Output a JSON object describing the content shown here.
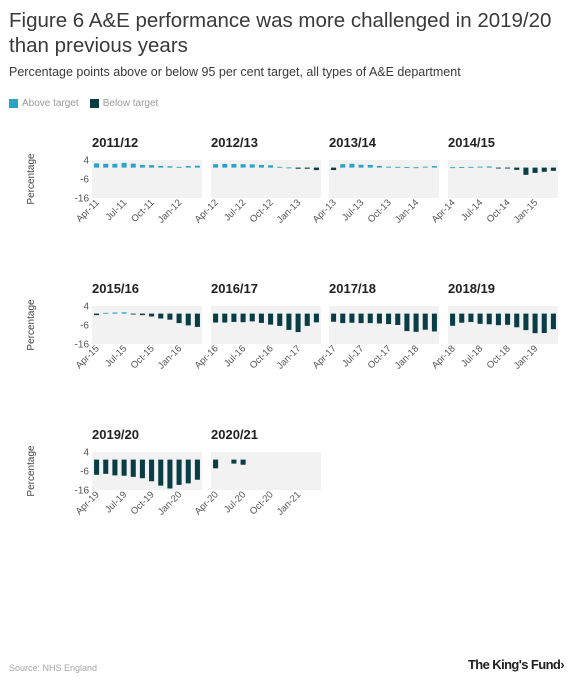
{
  "title": "Figure 6 A&E performance was more challenged in 2019/20 than previous years",
  "subtitle": "Percentage points above or below 95 per cent target, all types of A&E department",
  "legend": [
    {
      "label": "Above target",
      "color": "#2aa3c9"
    },
    {
      "label": "Below target",
      "color": "#083d45"
    }
  ],
  "source": "Source: NHS England",
  "logo": "The King's Fund",
  "logo_icon": "chevron-right-icon",
  "colors": {
    "above": "#2aa3c9",
    "below": "#083d45",
    "panel_bg": "#f2f2f2",
    "tick": "#555555"
  },
  "chart_data": [
    {
      "type": "bar",
      "title": "2011/12",
      "ylabel": "Percentage",
      "ylim": [
        -16,
        4
      ],
      "yticks": [
        4,
        -6,
        -16
      ],
      "categories": [
        "Apr-11",
        "May-11",
        "Jun-11",
        "Jul-11",
        "Aug-11",
        "Sep-11",
        "Oct-11",
        "Nov-11",
        "Dec-11",
        "Jan-12",
        "Feb-12",
        "Mar-12"
      ],
      "xticks": [
        "Apr-11",
        "Jul-11",
        "Oct-11",
        "Jan-12"
      ],
      "values": [
        2.2,
        2.0,
        2.0,
        2.5,
        2.1,
        1.4,
        1.3,
        0.9,
        0.7,
        0.4,
        0.8,
        1.0
      ]
    },
    {
      "type": "bar",
      "title": "2012/13",
      "ylabel": "",
      "ylim": [
        -16,
        4
      ],
      "yticks": [],
      "categories": [
        "Apr-12",
        "May-12",
        "Jun-12",
        "Jul-12",
        "Aug-12",
        "Sep-12",
        "Oct-12",
        "Nov-12",
        "Dec-12",
        "Jan-13",
        "Feb-13",
        "Mar-13"
      ],
      "xticks": [
        "Apr-12",
        "Jul-12",
        "Oct-12",
        "Jan-13"
      ],
      "values": [
        1.8,
        1.9,
        1.9,
        1.8,
        1.7,
        1.4,
        1.2,
        0.4,
        0.1,
        -0.6,
        -0.6,
        -1.3
      ]
    },
    {
      "type": "bar",
      "title": "2013/14",
      "ylabel": "",
      "ylim": [
        -16,
        4
      ],
      "yticks": [],
      "categories": [
        "Apr-13",
        "May-13",
        "Jun-13",
        "Jul-13",
        "Aug-13",
        "Sep-13",
        "Oct-13",
        "Nov-13",
        "Dec-13",
        "Jan-14",
        "Feb-14",
        "Mar-14"
      ],
      "xticks": [
        "Apr-13",
        "Jul-13",
        "Oct-13",
        "Jan-14"
      ],
      "values": [
        -1.3,
        1.8,
        2.0,
        1.5,
        1.4,
        0.9,
        0.5,
        0.4,
        0.3,
        0.2,
        0.5,
        0.8
      ]
    },
    {
      "type": "bar",
      "title": "2014/15",
      "ylabel": "",
      "ylim": [
        -16,
        4
      ],
      "yticks": [],
      "categories": [
        "Apr-14",
        "May-14",
        "Jun-14",
        "Jul-14",
        "Aug-14",
        "Sep-14",
        "Oct-14",
        "Nov-14",
        "Dec-14",
        "Jan-15",
        "Feb-15",
        "Mar-15"
      ],
      "xticks": [
        "Apr-14",
        "Jul-14",
        "Oct-14",
        "Jan-15"
      ],
      "values": [
        0.2,
        0.3,
        0.4,
        0.5,
        0.6,
        -0.4,
        -0.3,
        -1.2,
        -3.8,
        -2.8,
        -2.2,
        -1.7
      ]
    },
    {
      "type": "bar",
      "title": "2015/16",
      "ylabel": "Percentage",
      "ylim": [
        -16,
        4
      ],
      "yticks": [
        4,
        -6,
        -16
      ],
      "categories": [
        "Apr-15",
        "May-15",
        "Jun-15",
        "Jul-15",
        "Aug-15",
        "Sep-15",
        "Oct-15",
        "Nov-15",
        "Dec-15",
        "Jan-16",
        "Feb-16",
        "Mar-16"
      ],
      "xticks": [
        "Apr-15",
        "Jul-15",
        "Oct-15",
        "Jan-16"
      ],
      "values": [
        -0.8,
        0.4,
        0.6,
        0.7,
        -0.3,
        -0.8,
        -1.5,
        -2.6,
        -3.2,
        -5.0,
        -6.2,
        -7.0
      ]
    },
    {
      "type": "bar",
      "title": "2016/17",
      "ylabel": "",
      "ylim": [
        -16,
        4
      ],
      "yticks": [],
      "categories": [
        "Apr-16",
        "May-16",
        "Jun-16",
        "Jul-16",
        "Aug-16",
        "Sep-16",
        "Oct-16",
        "Nov-16",
        "Dec-16",
        "Jan-17",
        "Feb-17",
        "Mar-17"
      ],
      "xticks": [
        "Apr-16",
        "Jul-16",
        "Oct-16",
        "Jan-17"
      ],
      "values": [
        -4.7,
        -4.7,
        -4.4,
        -4.5,
        -4.1,
        -4.9,
        -5.8,
        -6.5,
        -8.6,
        -9.7,
        -6.5,
        -4.6
      ]
    },
    {
      "type": "bar",
      "title": "2017/18",
      "ylabel": "",
      "ylim": [
        -16,
        4
      ],
      "yticks": [],
      "categories": [
        "Apr-17",
        "May-17",
        "Jun-17",
        "Jul-17",
        "Aug-17",
        "Sep-17",
        "Oct-17",
        "Nov-17",
        "Dec-17",
        "Jan-18",
        "Feb-18",
        "Mar-18"
      ],
      "xticks": [
        "Apr-17",
        "Jul-17",
        "Oct-17",
        "Jan-18"
      ],
      "values": [
        -4.3,
        -5.0,
        -4.8,
        -5.0,
        -5.0,
        -5.2,
        -5.5,
        -6.0,
        -9.2,
        -9.6,
        -8.5,
        -9.4
      ]
    },
    {
      "type": "bar",
      "title": "2018/19",
      "ylabel": "",
      "ylim": [
        -16,
        4
      ],
      "yticks": [],
      "categories": [
        "Apr-18",
        "May-18",
        "Jun-18",
        "Jul-18",
        "Aug-18",
        "Sep-18",
        "Oct-18",
        "Nov-18",
        "Dec-18",
        "Jan-19",
        "Feb-19",
        "Mar-19"
      ],
      "xticks": [
        "Apr-18",
        "Jul-18",
        "Oct-18",
        "Jan-19"
      ],
      "values": [
        -6.4,
        -4.8,
        -4.4,
        -5.4,
        -5.6,
        -6.1,
        -5.9,
        -7.2,
        -8.7,
        -10.3,
        -10.2,
        -8.2
      ]
    },
    {
      "type": "bar",
      "title": "2019/20",
      "ylabel": "Percentage",
      "ylim": [
        -16,
        4
      ],
      "yticks": [
        4,
        -6,
        -16
      ],
      "categories": [
        "Apr-19",
        "May-19",
        "Jun-19",
        "Jul-19",
        "Aug-19",
        "Sep-19",
        "Oct-19",
        "Nov-19",
        "Dec-19",
        "Jan-20",
        "Feb-20",
        "Mar-20"
      ],
      "xticks": [
        "Apr-19",
        "Jul-19",
        "Oct-19",
        "Jan-20"
      ],
      "values": [
        -8.0,
        -7.5,
        -8.3,
        -8.5,
        -9.1,
        -9.8,
        -11.4,
        -13.7,
        -15.2,
        -13.3,
        -12.5,
        -10.6
      ]
    },
    {
      "type": "bar",
      "title": "2020/21",
      "ylabel": "",
      "ylim": [
        -16,
        4
      ],
      "yticks": [],
      "categories": [
        "Apr-20",
        "May-20",
        "Jun-20",
        "Jul-20",
        "Aug-20",
        "Sep-20",
        "Oct-20",
        "Nov-20",
        "Dec-20",
        "Jan-21",
        "Feb-21",
        "Mar-21"
      ],
      "xticks": [
        "Apr-20",
        "Jul-20",
        "Oct-20",
        "Jan-21"
      ],
      "values": [
        -4.6,
        null,
        -2.1,
        -2.7,
        null,
        null,
        null,
        null,
        null,
        null,
        null,
        null
      ]
    }
  ]
}
